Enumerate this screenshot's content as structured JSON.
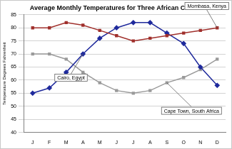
{
  "chart_data": {
    "type": "line",
    "title": "Average Monthly Temperatures for Three African Cities",
    "y_label": "Temperature Degrees Fahrenheit",
    "categories": [
      "J",
      "F",
      "M",
      "A",
      "M",
      "J",
      "J",
      "A",
      "S",
      "O",
      "N",
      "D"
    ],
    "series": [
      {
        "name": "Mombasa, Kenya",
        "color": "#a0302c",
        "marker": "square",
        "values": [
          80,
          80,
          82,
          81,
          79,
          77,
          75,
          76,
          77,
          78,
          79,
          80
        ]
      },
      {
        "name": "Cairo, Egypt",
        "color": "#1f2a9c",
        "marker": "diamond",
        "values": [
          55,
          57,
          63,
          70,
          76,
          80,
          82,
          82,
          78,
          74,
          65,
          58
        ]
      },
      {
        "name": "Cape Town, South Africa",
        "color": "#9a9a9a",
        "marker": "square",
        "values": [
          70,
          70,
          68,
          63,
          59,
          56,
          55,
          56,
          59,
          61,
          64,
          68
        ]
      }
    ],
    "ylim": [
      40,
      85
    ],
    "yticks": [
      40,
      45,
      50,
      55,
      60,
      65,
      70,
      75,
      80,
      85
    ],
    "grid": true
  }
}
